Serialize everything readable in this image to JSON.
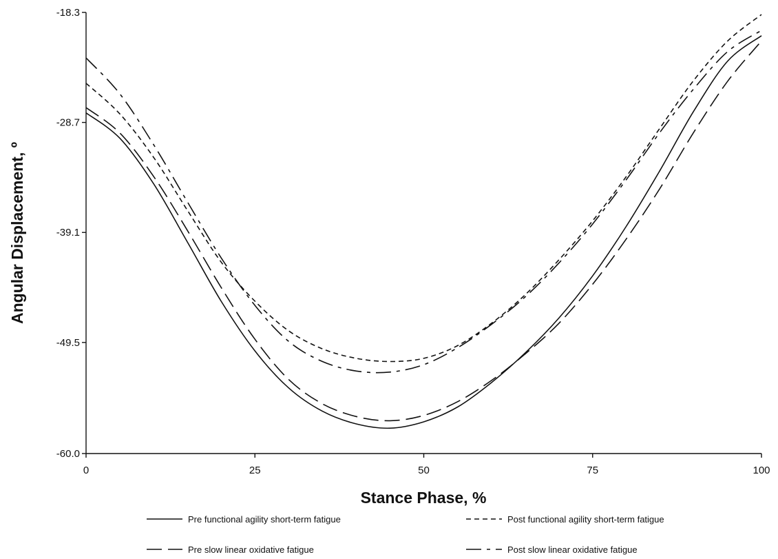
{
  "chart_data": {
    "type": "line",
    "title": "",
    "xlabel": "Stance Phase, %",
    "ylabel": "Angular Displacement, º",
    "xlim": [
      0,
      100
    ],
    "ylim": [
      -60.0,
      -18.3
    ],
    "xticks": [
      0,
      25,
      50,
      75,
      100
    ],
    "xtick_labels": [
      "0",
      "25",
      "50",
      "75",
      "100"
    ],
    "yticks": [
      -60.0,
      -49.5,
      -39.1,
      -28.7,
      -18.3
    ],
    "ytick_labels": [
      "-60.0",
      "-49.5",
      "-39.1",
      "-28.7",
      "-18.3"
    ],
    "grid": false,
    "legend_position": "bottom",
    "series": [
      {
        "name": "Pre functional agility short-term fatigue",
        "dash": "solid",
        "x": [
          0,
          5,
          10,
          15,
          20,
          25,
          30,
          35,
          40,
          45,
          50,
          55,
          60,
          65,
          70,
          75,
          80,
          85,
          90,
          95,
          100
        ],
        "y": [
          -27.8,
          -30.2,
          -34.5,
          -40.0,
          -45.6,
          -50.3,
          -53.8,
          -56.0,
          -57.2,
          -57.6,
          -57.0,
          -55.6,
          -53.3,
          -50.5,
          -47.2,
          -43.2,
          -38.5,
          -33.2,
          -27.6,
          -22.9,
          -20.5
        ]
      },
      {
        "name": "Post functional agility short-term fatigue",
        "dash": "short",
        "x": [
          0,
          5,
          10,
          15,
          20,
          25,
          30,
          35,
          40,
          45,
          50,
          55,
          60,
          65,
          70,
          75,
          80,
          85,
          90,
          95,
          100
        ],
        "y": [
          -25.0,
          -27.9,
          -32.0,
          -37.0,
          -41.9,
          -45.6,
          -48.4,
          -50.1,
          -51.0,
          -51.3,
          -51.0,
          -49.8,
          -47.7,
          -45.0,
          -41.7,
          -38.0,
          -33.8,
          -29.2,
          -24.7,
          -21.0,
          -18.5
        ]
      },
      {
        "name": "Pre slow linear oxidative fatigue",
        "dash": "long",
        "x": [
          0,
          5,
          10,
          15,
          20,
          25,
          30,
          35,
          40,
          45,
          50,
          55,
          60,
          65,
          70,
          75,
          80,
          85,
          90,
          95,
          100
        ],
        "y": [
          -27.3,
          -29.7,
          -33.8,
          -38.9,
          -44.3,
          -49.2,
          -53.0,
          -55.3,
          -56.5,
          -56.9,
          -56.4,
          -55.1,
          -53.1,
          -50.6,
          -47.7,
          -44.0,
          -39.7,
          -34.9,
          -29.6,
          -24.8,
          -21.0
        ]
      },
      {
        "name": "Post slow linear oxidative fatigue",
        "dash": "dashdot",
        "x": [
          0,
          5,
          10,
          15,
          20,
          25,
          30,
          35,
          40,
          45,
          50,
          55,
          60,
          65,
          70,
          75,
          80,
          85,
          90,
          95,
          100
        ],
        "y": [
          -22.6,
          -26.0,
          -30.8,
          -36.2,
          -41.5,
          -46.0,
          -49.4,
          -51.3,
          -52.2,
          -52.3,
          -51.6,
          -50.0,
          -47.8,
          -45.2,
          -42.0,
          -38.3,
          -34.1,
          -29.6,
          -25.5,
          -22.0,
          -20.0
        ]
      }
    ]
  }
}
